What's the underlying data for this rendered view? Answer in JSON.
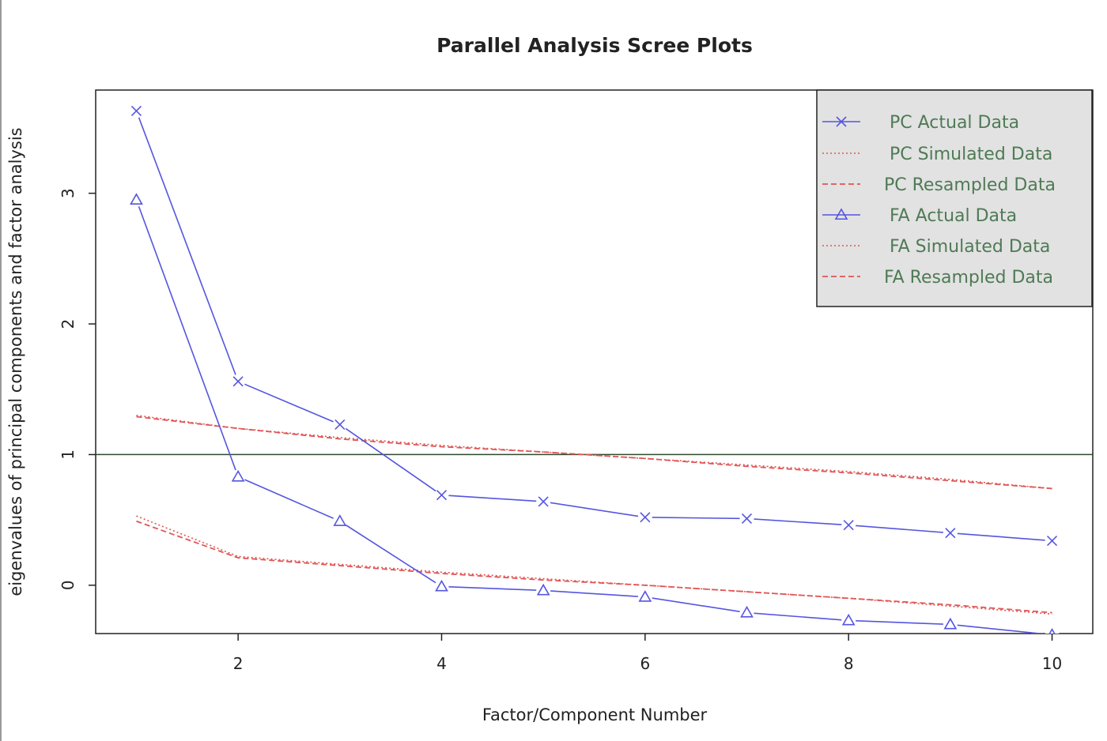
{
  "chart_data": {
    "type": "line",
    "title": "Parallel Analysis Scree Plots",
    "xlabel": "Factor/Component Number",
    "ylabel": "eigenvalues of principal components and factor analysis",
    "x": [
      1,
      2,
      3,
      4,
      5,
      6,
      7,
      8,
      9,
      10
    ],
    "xlim": [
      0.6,
      10.4
    ],
    "ylim": [
      -0.37,
      3.79
    ],
    "x_ticks": [
      2,
      4,
      6,
      8,
      10
    ],
    "y_ticks": [
      0,
      1,
      2,
      3
    ],
    "reference_line": 1,
    "legend_position": "top-right",
    "colors": {
      "actual": "#5555e0",
      "simulated": "#e05555",
      "legend_bg": "#e2e2e2",
      "legend_text": "#4f7a55"
    },
    "series": [
      {
        "name": "PC  Actual Data",
        "style": "solid-cross",
        "values": [
          3.63,
          1.56,
          1.23,
          0.69,
          0.64,
          0.52,
          0.51,
          0.46,
          0.4,
          0.34
        ]
      },
      {
        "name": "PC  Simulated Data",
        "style": "dotted",
        "values": [
          1.3,
          1.2,
          1.13,
          1.07,
          1.02,
          0.97,
          0.92,
          0.87,
          0.81,
          0.74
        ]
      },
      {
        "name": "PC  Resampled Data",
        "style": "dashed",
        "values": [
          1.29,
          1.2,
          1.12,
          1.06,
          1.02,
          0.97,
          0.91,
          0.86,
          0.8,
          0.74
        ]
      },
      {
        "name": "FA  Actual Data",
        "style": "solid-triangle",
        "values": [
          2.95,
          0.83,
          0.49,
          -0.01,
          -0.04,
          -0.09,
          -0.21,
          -0.27,
          -0.3,
          -0.38
        ]
      },
      {
        "name": "FA  Simulated Data",
        "style": "dotted",
        "values": [
          0.53,
          0.22,
          0.16,
          0.1,
          0.05,
          0.0,
          -0.05,
          -0.1,
          -0.16,
          -0.22
        ]
      },
      {
        "name": "FA  Resampled Data",
        "style": "dashed",
        "values": [
          0.49,
          0.21,
          0.15,
          0.09,
          0.04,
          0.0,
          -0.05,
          -0.1,
          -0.15,
          -0.21
        ]
      }
    ]
  }
}
